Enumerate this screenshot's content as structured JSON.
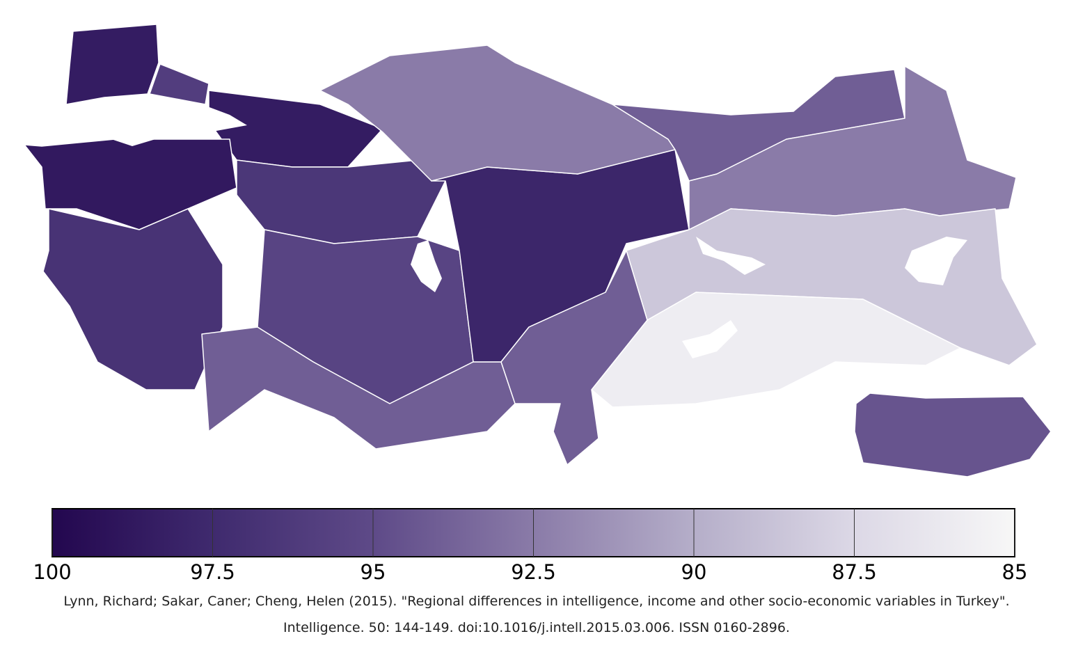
{
  "map_data": {
    "type": "choropleth",
    "region_values": [
      98.5,
      96,
      98.5,
      98.7,
      96.8,
      96.5,
      95.5,
      94,
      97.8,
      92.5,
      94,
      92.5,
      88.5,
      85.8,
      94,
      94.5
    ],
    "colorbar": {
      "lim": [
        100,
        85
      ],
      "ticks": [
        100,
        97.5,
        95,
        92.5,
        90,
        87.5,
        85
      ],
      "colormap": [
        "#23074f",
        "#3f2a6e",
        "#5e4a88",
        "#8a7ba8",
        "#b5aec9",
        "#dcd8e6",
        "#f7f7f7"
      ]
    },
    "source": [
      "Lynn, Richard; Sakar, Caner; Cheng, Helen (2015).  \"Regional differences in intelligence, income and other socio-economic variables in Turkey\".",
      "Intelligence. 50: 144-149. doi:10.1016/j.intell.2015.03.006. ISSN 0160-2896."
    ]
  }
}
